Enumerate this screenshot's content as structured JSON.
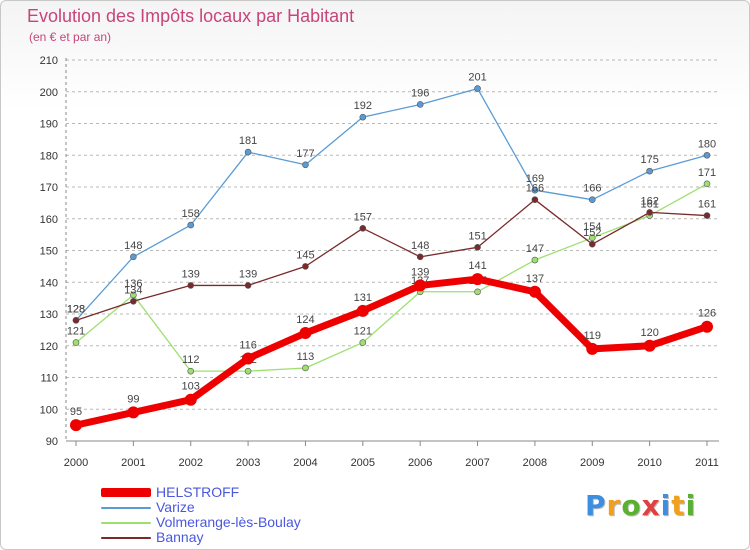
{
  "chart_data": {
    "type": "line",
    "title": "Evolution des Impôts locaux par Habitant",
    "subtitle": "(en € et par an)",
    "xlabel": "",
    "ylabel": "",
    "ylim": [
      90,
      210
    ],
    "yticks": [
      90,
      100,
      110,
      120,
      130,
      140,
      150,
      160,
      170,
      180,
      190,
      200,
      210
    ],
    "categories": [
      "2000",
      "2001",
      "2002",
      "2003",
      "2004",
      "2005",
      "2006",
      "2007",
      "2008",
      "2009",
      "2010",
      "2011"
    ],
    "grid": "horizontal dashed",
    "legend_position": "bottom-left",
    "series": [
      {
        "name": "Varize",
        "color": "#5a9bd5",
        "values": [
          128,
          148,
          158,
          181,
          177,
          192,
          196,
          201,
          169,
          166,
          175,
          180
        ],
        "labels": [
          "128",
          "148",
          "158",
          "181",
          "177",
          "192",
          "196",
          "201",
          "169",
          "166",
          "175",
          "180"
        ]
      },
      {
        "name": "Volmerange-lès-Boulay",
        "color": "#9ee070",
        "values": [
          121,
          136,
          112,
          112,
          113,
          121,
          137,
          137,
          147,
          154,
          161,
          171
        ],
        "labels": [
          "121",
          "136",
          "112",
          "112",
          "113",
          "121",
          "137",
          "137",
          "147",
          "154",
          "161",
          "171"
        ]
      },
      {
        "name": "Bannay",
        "color": "#7a2a2a",
        "values": [
          128,
          134,
          139,
          139,
          145,
          157,
          148,
          151,
          166,
          152,
          162,
          161
        ],
        "labels": [
          "128",
          "134",
          "139",
          "139",
          "145",
          "157",
          "148",
          "151",
          "166",
          "152",
          "162",
          "161"
        ]
      },
      {
        "name": "HELSTROFF",
        "color": "#ee0000",
        "values": [
          95,
          99,
          103,
          116,
          124,
          131,
          139,
          141,
          137,
          119,
          120,
          126
        ],
        "labels": [
          "95",
          "99",
          "103",
          "116",
          "124",
          "131",
          "139",
          "141",
          "137",
          "119",
          "120",
          "126"
        ]
      }
    ],
    "legend": [
      {
        "name": "HELSTROFF",
        "color": "#ee0000"
      },
      {
        "name": "Varize",
        "color": "#5a9bd5"
      },
      {
        "name": "Volmerange-lès-Boulay",
        "color": "#9ee070"
      },
      {
        "name": "Bannay",
        "color": "#7a2a2a"
      }
    ]
  },
  "logo": {
    "letters": [
      "P",
      "r",
      "o",
      "x",
      "i",
      "t",
      "i"
    ],
    "colors": [
      "#3b8ee0",
      "#f0a020",
      "#5ab030",
      "#e04040",
      "#3b8ee0",
      "#f0a020",
      "#5ab030"
    ]
  }
}
